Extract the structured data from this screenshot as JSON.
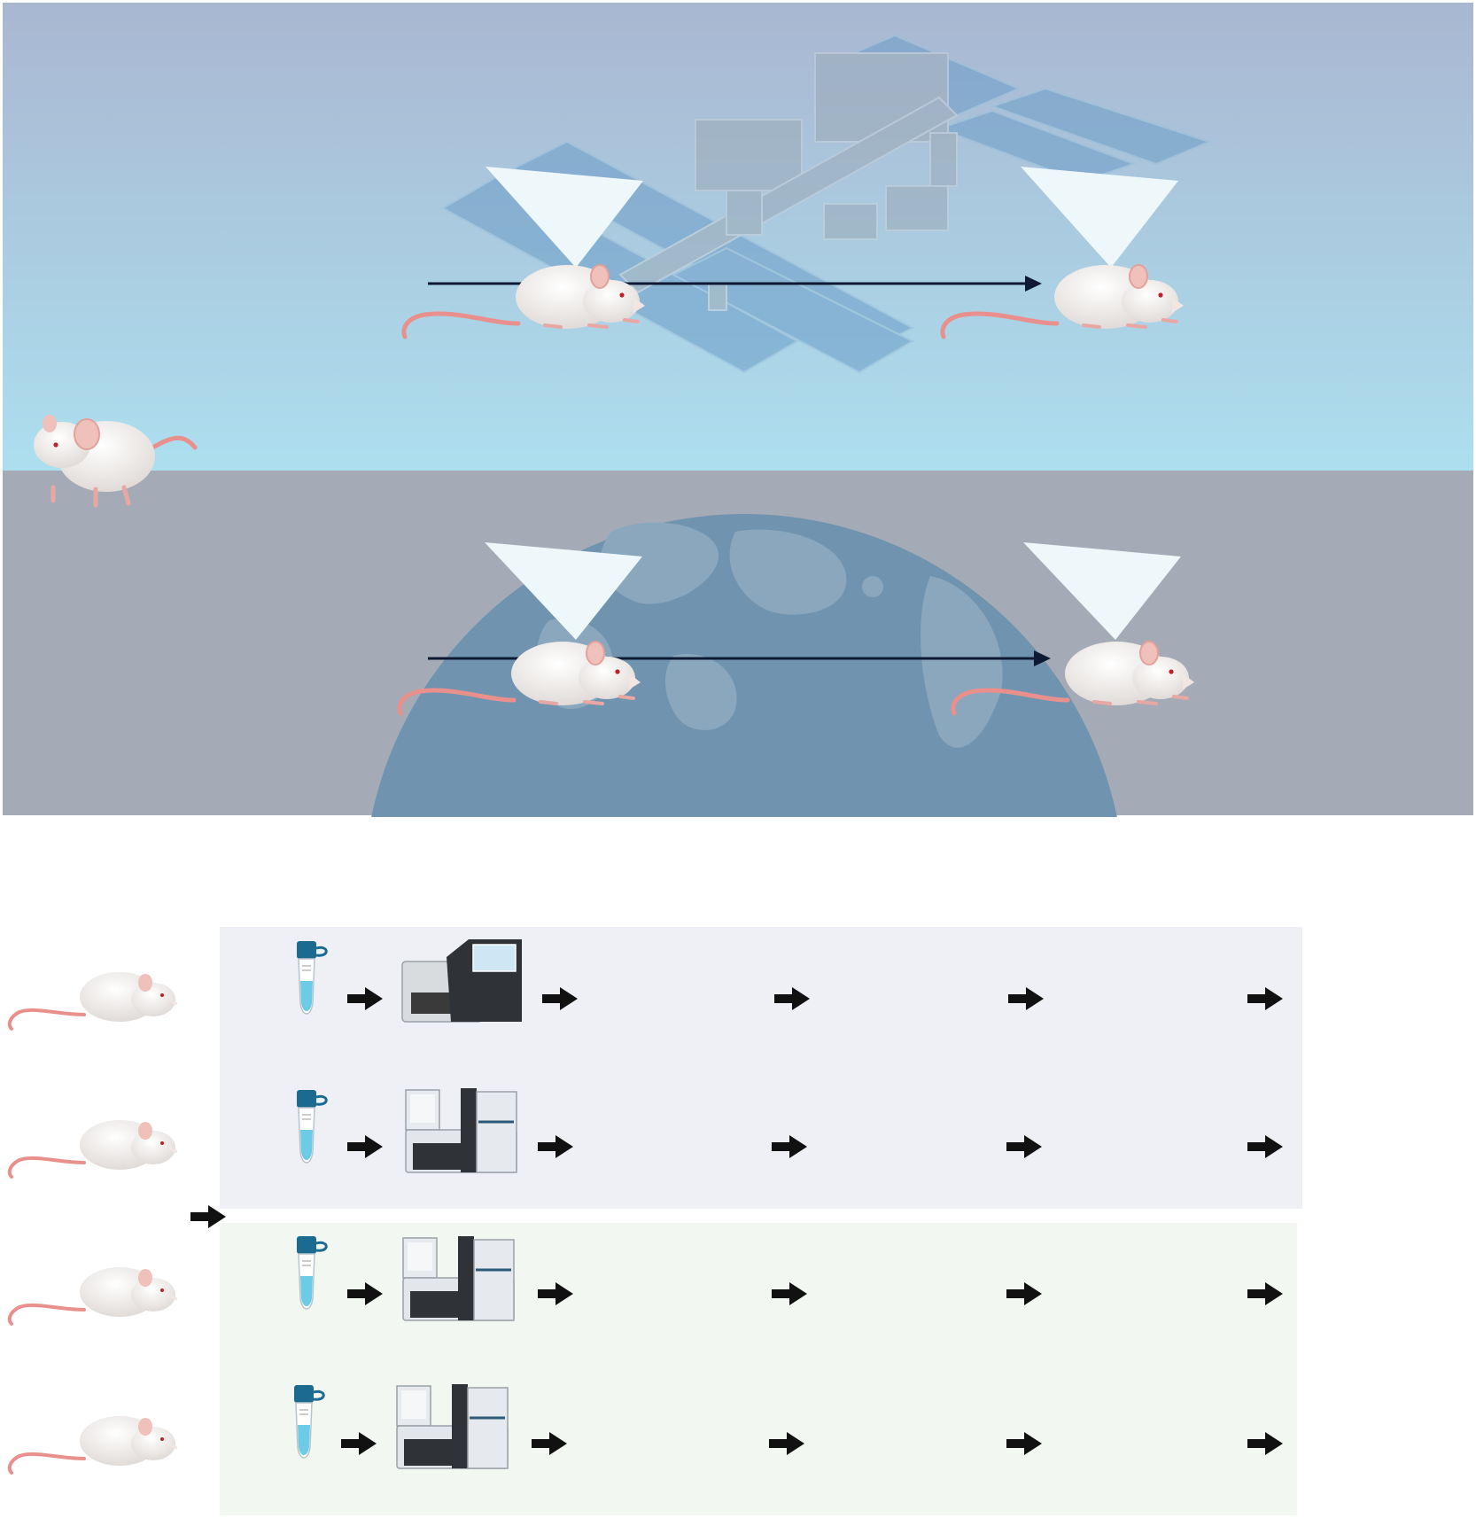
{
  "figure": {
    "top_panel": {
      "space_condition": {
        "environment": "space-station",
        "timeline_start": "mouse-icon",
        "timeline_end": "mouse-icon"
      },
      "ground_condition": {
        "environment": "earth-globe",
        "timeline_start": "mouse-icon",
        "timeline_end": "mouse-icon"
      },
      "side_mouse": "mouse-standing-icon",
      "colors": {
        "sky_top": "#a9b7d1",
        "sky_bottom": "#abdfef",
        "ground": "#a4abb6",
        "globe": "#7094b0",
        "arrow": "#0e1a33"
      }
    },
    "bottom_panel": {
      "rows": [
        {
          "group": "upper",
          "tube_icon": "sample-tube-icon",
          "instrument_icon": "sequencer-icon-a"
        },
        {
          "group": "upper",
          "tube_icon": "sample-tube-icon",
          "instrument_icon": "sequencer-icon-b"
        },
        {
          "group": "lower",
          "tube_icon": "sample-tube-icon",
          "instrument_icon": "sequencer-icon-b"
        },
        {
          "group": "lower",
          "tube_icon": "sample-tube-icon",
          "instrument_icon": "sequencer-icon-b"
        }
      ],
      "colors": {
        "upper_group_bg": "#eff0f6",
        "lower_group_bg": "#f2f8f1",
        "arrow": "#111111",
        "tube_cap": "#1d6a90",
        "tube_liquid": "#6ccbe5"
      }
    }
  }
}
